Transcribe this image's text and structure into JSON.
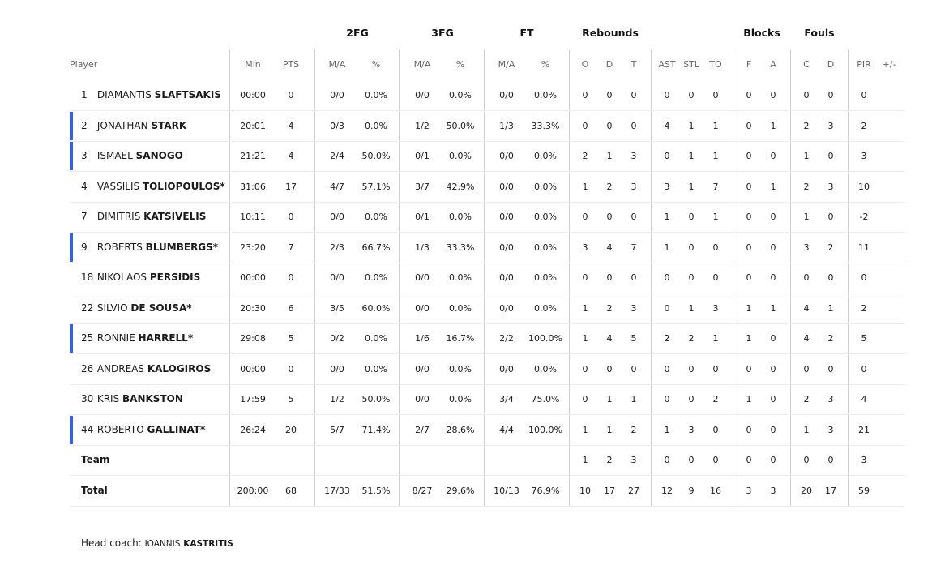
{
  "groups": {
    "fg2": "2FG",
    "fg3": "3FG",
    "ft": "FT",
    "rebounds": "Rebounds",
    "blocks": "Blocks",
    "fouls": "Fouls"
  },
  "headers": {
    "player": "Player",
    "min": "Min",
    "pts": "PTS",
    "fg2_ma": "M/A",
    "fg2_pct": "%",
    "fg3_ma": "M/A",
    "fg3_pct": "%",
    "ft_ma": "M/A",
    "ft_pct": "%",
    "reb_o": "O",
    "reb_d": "D",
    "reb_t": "T",
    "ast": "AST",
    "stl": "STL",
    "to": "TO",
    "blk_f": "F",
    "blk_a": "A",
    "foul_c": "C",
    "foul_d": "D",
    "pir": "PIR",
    "plusminus": "+/-"
  },
  "players": [
    {
      "num": "1",
      "first": "DIAMANTIS",
      "last": "SLAFTSAKIS",
      "starter": false,
      "min": "00:00",
      "pts": "0",
      "fg2_ma": "0/0",
      "fg2_pct": "0.0%",
      "fg3_ma": "0/0",
      "fg3_pct": "0.0%",
      "ft_ma": "0/0",
      "ft_pct": "0.0%",
      "reb_o": "0",
      "reb_d": "0",
      "reb_t": "0",
      "ast": "0",
      "stl": "0",
      "to": "0",
      "blk_f": "0",
      "blk_a": "0",
      "foul_c": "0",
      "foul_d": "0",
      "pir": "0",
      "plusminus": ""
    },
    {
      "num": "2",
      "first": "JONATHAN",
      "last": "STARK",
      "starter": true,
      "min": "20:01",
      "pts": "4",
      "fg2_ma": "0/3",
      "fg2_pct": "0.0%",
      "fg3_ma": "1/2",
      "fg3_pct": "50.0%",
      "ft_ma": "1/3",
      "ft_pct": "33.3%",
      "reb_o": "0",
      "reb_d": "0",
      "reb_t": "0",
      "ast": "4",
      "stl": "1",
      "to": "1",
      "blk_f": "0",
      "blk_a": "1",
      "foul_c": "2",
      "foul_d": "3",
      "pir": "2",
      "plusminus": ""
    },
    {
      "num": "3",
      "first": "ISMAEL",
      "last": "SANOGO",
      "starter": true,
      "min": "21:21",
      "pts": "4",
      "fg2_ma": "2/4",
      "fg2_pct": "50.0%",
      "fg3_ma": "0/1",
      "fg3_pct": "0.0%",
      "ft_ma": "0/0",
      "ft_pct": "0.0%",
      "reb_o": "2",
      "reb_d": "1",
      "reb_t": "3",
      "ast": "0",
      "stl": "1",
      "to": "1",
      "blk_f": "0",
      "blk_a": "0",
      "foul_c": "1",
      "foul_d": "0",
      "pir": "3",
      "plusminus": ""
    },
    {
      "num": "4",
      "first": "VASSILIS",
      "last": "TOLIOPOULOS*",
      "starter": false,
      "min": "31:06",
      "pts": "17",
      "fg2_ma": "4/7",
      "fg2_pct": "57.1%",
      "fg3_ma": "3/7",
      "fg3_pct": "42.9%",
      "ft_ma": "0/0",
      "ft_pct": "0.0%",
      "reb_o": "1",
      "reb_d": "2",
      "reb_t": "3",
      "ast": "3",
      "stl": "1",
      "to": "7",
      "blk_f": "0",
      "blk_a": "1",
      "foul_c": "2",
      "foul_d": "3",
      "pir": "10",
      "plusminus": ""
    },
    {
      "num": "7",
      "first": "DIMITRIS",
      "last": "KATSIVELIS",
      "starter": false,
      "min": "10:11",
      "pts": "0",
      "fg2_ma": "0/0",
      "fg2_pct": "0.0%",
      "fg3_ma": "0/1",
      "fg3_pct": "0.0%",
      "ft_ma": "0/0",
      "ft_pct": "0.0%",
      "reb_o": "0",
      "reb_d": "0",
      "reb_t": "0",
      "ast": "1",
      "stl": "0",
      "to": "1",
      "blk_f": "0",
      "blk_a": "0",
      "foul_c": "1",
      "foul_d": "0",
      "pir": "-2",
      "plusminus": ""
    },
    {
      "num": "9",
      "first": "ROBERTS",
      "last": "BLUMBERGS*",
      "starter": true,
      "min": "23:20",
      "pts": "7",
      "fg2_ma": "2/3",
      "fg2_pct": "66.7%",
      "fg3_ma": "1/3",
      "fg3_pct": "33.3%",
      "ft_ma": "0/0",
      "ft_pct": "0.0%",
      "reb_o": "3",
      "reb_d": "4",
      "reb_t": "7",
      "ast": "1",
      "stl": "0",
      "to": "0",
      "blk_f": "0",
      "blk_a": "0",
      "foul_c": "3",
      "foul_d": "2",
      "pir": "11",
      "plusminus": ""
    },
    {
      "num": "18",
      "first": "NIKOLAOS",
      "last": "PERSIDIS",
      "starter": false,
      "min": "00:00",
      "pts": "0",
      "fg2_ma": "0/0",
      "fg2_pct": "0.0%",
      "fg3_ma": "0/0",
      "fg3_pct": "0.0%",
      "ft_ma": "0/0",
      "ft_pct": "0.0%",
      "reb_o": "0",
      "reb_d": "0",
      "reb_t": "0",
      "ast": "0",
      "stl": "0",
      "to": "0",
      "blk_f": "0",
      "blk_a": "0",
      "foul_c": "0",
      "foul_d": "0",
      "pir": "0",
      "plusminus": ""
    },
    {
      "num": "22",
      "first": "SILVIO",
      "last": "DE SOUSA*",
      "starter": false,
      "min": "20:30",
      "pts": "6",
      "fg2_ma": "3/5",
      "fg2_pct": "60.0%",
      "fg3_ma": "0/0",
      "fg3_pct": "0.0%",
      "ft_ma": "0/0",
      "ft_pct": "0.0%",
      "reb_o": "1",
      "reb_d": "2",
      "reb_t": "3",
      "ast": "0",
      "stl": "1",
      "to": "3",
      "blk_f": "1",
      "blk_a": "1",
      "foul_c": "4",
      "foul_d": "1",
      "pir": "2",
      "plusminus": ""
    },
    {
      "num": "25",
      "first": "RONNIE",
      "last": "HARRELL*",
      "starter": true,
      "min": "29:08",
      "pts": "5",
      "fg2_ma": "0/2",
      "fg2_pct": "0.0%",
      "fg3_ma": "1/6",
      "fg3_pct": "16.7%",
      "ft_ma": "2/2",
      "ft_pct": "100.0%",
      "reb_o": "1",
      "reb_d": "4",
      "reb_t": "5",
      "ast": "2",
      "stl": "2",
      "to": "1",
      "blk_f": "1",
      "blk_a": "0",
      "foul_c": "4",
      "foul_d": "2",
      "pir": "5",
      "plusminus": ""
    },
    {
      "num": "26",
      "first": "ANDREAS",
      "last": "KALOGIROS",
      "starter": false,
      "min": "00:00",
      "pts": "0",
      "fg2_ma": "0/0",
      "fg2_pct": "0.0%",
      "fg3_ma": "0/0",
      "fg3_pct": "0.0%",
      "ft_ma": "0/0",
      "ft_pct": "0.0%",
      "reb_o": "0",
      "reb_d": "0",
      "reb_t": "0",
      "ast": "0",
      "stl": "0",
      "to": "0",
      "blk_f": "0",
      "blk_a": "0",
      "foul_c": "0",
      "foul_d": "0",
      "pir": "0",
      "plusminus": ""
    },
    {
      "num": "30",
      "first": "KRIS",
      "last": "BANKSTON",
      "starter": false,
      "min": "17:59",
      "pts": "5",
      "fg2_ma": "1/2",
      "fg2_pct": "50.0%",
      "fg3_ma": "0/0",
      "fg3_pct": "0.0%",
      "ft_ma": "3/4",
      "ft_pct": "75.0%",
      "reb_o": "0",
      "reb_d": "1",
      "reb_t": "1",
      "ast": "0",
      "stl": "0",
      "to": "2",
      "blk_f": "1",
      "blk_a": "0",
      "foul_c": "2",
      "foul_d": "3",
      "pir": "4",
      "plusminus": ""
    },
    {
      "num": "44",
      "first": "ROBERTO",
      "last": "GALLINAT*",
      "starter": true,
      "min": "26:24",
      "pts": "20",
      "fg2_ma": "5/7",
      "fg2_pct": "71.4%",
      "fg3_ma": "2/7",
      "fg3_pct": "28.6%",
      "ft_ma": "4/4",
      "ft_pct": "100.0%",
      "reb_o": "1",
      "reb_d": "1",
      "reb_t": "2",
      "ast": "1",
      "stl": "3",
      "to": "0",
      "blk_f": "0",
      "blk_a": "0",
      "foul_c": "1",
      "foul_d": "3",
      "pir": "21",
      "plusminus": ""
    }
  ],
  "team": {
    "label": "Team",
    "min": "",
    "pts": "",
    "fg2_ma": "",
    "fg2_pct": "",
    "fg3_ma": "",
    "fg3_pct": "",
    "ft_ma": "",
    "ft_pct": "",
    "reb_o": "1",
    "reb_d": "2",
    "reb_t": "3",
    "ast": "0",
    "stl": "0",
    "to": "0",
    "blk_f": "0",
    "blk_a": "0",
    "foul_c": "0",
    "foul_d": "0",
    "pir": "3",
    "plusminus": ""
  },
  "total": {
    "label": "Total",
    "min": "200:00",
    "pts": "68",
    "fg2_ma": "17/33",
    "fg2_pct": "51.5%",
    "fg3_ma": "8/27",
    "fg3_pct": "29.6%",
    "ft_ma": "10/13",
    "ft_pct": "76.9%",
    "reb_o": "10",
    "reb_d": "17",
    "reb_t": "27",
    "ast": "12",
    "stl": "9",
    "to": "16",
    "blk_f": "3",
    "blk_a": "3",
    "foul_c": "20",
    "foul_d": "17",
    "pir": "59",
    "plusminus": ""
  },
  "coach": {
    "label": "Head coach:",
    "first": "IOANNIS",
    "last": "KASTRITIS"
  },
  "colors": {
    "starter_marker": "#3560ee",
    "divider": "#cfcfcf",
    "row_border": "#ececec"
  }
}
